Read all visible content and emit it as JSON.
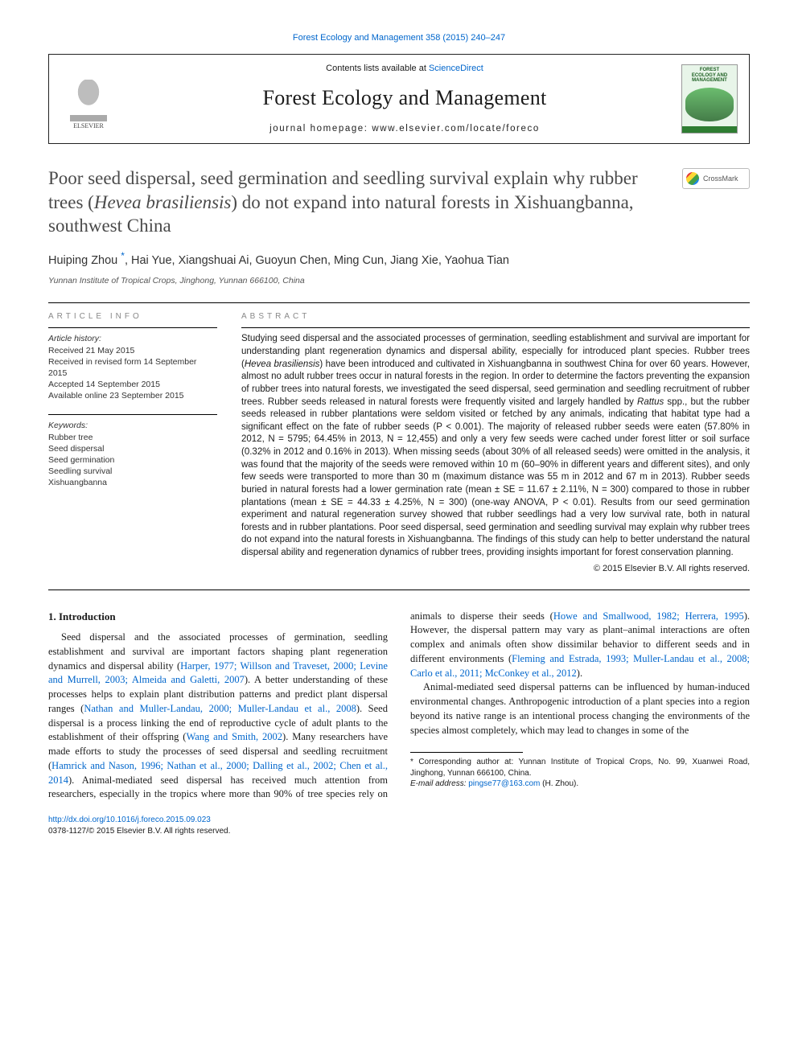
{
  "top_link": {
    "text": "Forest Ecology and Management 358 (2015) 240–247",
    "href": "#"
  },
  "header": {
    "contents_prefix": "Contents lists available at ",
    "contents_link": "ScienceDirect",
    "journal_name": "Forest Ecology and Management",
    "homepage_prefix": "journal homepage: ",
    "homepage_url": "www.elsevier.com/locate/foreco",
    "publisher_logo_text": "ELSEVIER",
    "cover_line1": "FOREST",
    "cover_line2": "ECOLOGY AND",
    "cover_line3": "MANAGEMENT"
  },
  "crossmark_label": "CrossMark",
  "title": {
    "pre": "Poor seed dispersal, seed germination and seedling survival explain why rubber trees (",
    "latin": "Hevea brasiliensis",
    "post": ") do not expand into natural forests in Xishuangbanna, southwest China"
  },
  "authors_prefix": "Huiping Zhou",
  "authors_rest": ", Hai Yue, Xiangshuai Ai, Guoyun Chen, Ming Cun, Jiang Xie, Yaohua Tian",
  "corr_symbol": "*",
  "affiliation": "Yunnan Institute of Tropical Crops, Jinghong, Yunnan 666100, China",
  "article_info": {
    "heading": "article info",
    "history_label": "Article history:",
    "received": "Received 21 May 2015",
    "revised": "Received in revised form 14 September 2015",
    "accepted": "Accepted 14 September 2015",
    "online": "Available online 23 September 2015",
    "keywords_label": "Keywords:",
    "keywords": [
      "Rubber tree",
      "Seed dispersal",
      "Seed germination",
      "Seedling survival",
      "Xishuangbanna"
    ]
  },
  "abstract": {
    "heading": "abstract",
    "body_1": "Studying seed dispersal and the associated processes of germination, seedling establishment and survival are important for understanding plant regeneration dynamics and dispersal ability, especially for introduced plant species. Rubber trees (",
    "latin_1": "Hevea brasiliensis",
    "body_2": ") have been introduced and cultivated in Xishuangbanna in southwest China for over 60 years. However, almost no adult rubber trees occur in natural forests in the region. In order to determine the factors preventing the expansion of rubber trees into natural forests, we investigated the seed dispersal, seed germination and seedling recruitment of rubber trees. Rubber seeds released in natural forests were frequently visited and largely handled by ",
    "latin_2": "Rattus",
    "body_3": " spp., but the rubber seeds released in rubber plantations were seldom visited or fetched by any animals, indicating that habitat type had a significant effect on the fate of rubber seeds (P < 0.001). The majority of released rubber seeds were eaten (57.80% in 2012, N = 5795; 64.45% in 2013, N = 12,455) and only a very few seeds were cached under forest litter or soil surface (0.32% in 2012 and 0.16% in 2013). When missing seeds (about 30% of all released seeds) were omitted in the analysis, it was found that the majority of the seeds were removed within 10 m (60–90% in different years and different sites), and only few seeds were transported to more than 30 m (maximum distance was 55 m in 2012 and 67 m in 2013). Rubber seeds buried in natural forests had a lower germination rate (mean ± SE = 11.67 ± 2.11%, N = 300) compared to those in rubber plantations (mean ± SE = 44.33 ± 4.25%, N = 300) (one-way ANOVA, P < 0.01). Results from our seed germination experiment and natural regeneration survey showed that rubber seedlings had a very low survival rate, both in natural forests and in rubber plantations. Poor seed dispersal, seed germination and seedling survival may explain why rubber trees do not expand into the natural forests in Xishuangbanna. The findings of this study can help to better understand the natural dispersal ability and regeneration dynamics of rubber trees, providing insights important for forest conservation planning.",
    "copyright": "© 2015 Elsevier B.V. All rights reserved."
  },
  "intro": {
    "heading": "1. Introduction",
    "p1_a": "Seed dispersal and the associated processes of germination, seedling establishment and survival are important factors shaping plant regeneration dynamics and dispersal ability (",
    "p1_link1": "Harper, 1977; Willson and Traveset, 2000; Levine and Murrell, 2003; Almeida and Galetti, 2007",
    "p1_b": "). A better understanding of these processes helps to explain plant distribution patterns and predict plant dispersal ranges (",
    "p1_link2": "Nathan and Muller-Landau, 2000; Muller-Landau et al., 2008",
    "p1_c": "). Seed dispersal is a process linking the end of reproductive cycle of adult plants to the establishment of their offspring (",
    "p1_link3": "Wang and Smith, 2002",
    "p1_d": "). Many researchers have made efforts to study the processes of seed dispersal and seedling recruitment (",
    "p1_link4": "Hamrick and Nason, 1996; Nathan et al., 2000; Dalling et al., 2002; Chen et al., 2014",
    "p1_e": "). Animal-mediated seed dispersal has received much attention from researchers, especially in the tropics where more than 90% of tree species rely on animals to disperse their seeds (",
    "p1_link5": "Howe and Smallwood, 1982; Herrera, 1995",
    "p1_f": "). However, the dispersal pattern may vary as plant–animal interactions are often complex and animals often show dissimilar behavior to different seeds and in different environments (",
    "p1_link6": "Fleming and Estrada, 1993; Muller-Landau et al., 2008; Carlo et al., 2011; McConkey et al., 2012",
    "p1_g": ").",
    "p2": "Animal-mediated seed dispersal patterns can be influenced by human-induced environmental changes. Anthropogenic introduction of a plant species into a region beyond its native range is an intentional process changing the environments of the species almost completely, which may lead to changes in some of the"
  },
  "footnote": {
    "corr_text": "Corresponding author at: Yunnan Institute of Tropical Crops, No. 99, Xuanwei Road, Jinghong, Yunnan 666100, China.",
    "email_label": "E-mail address:",
    "email": "pingse77@163.com",
    "email_who": "(H. Zhou)."
  },
  "doi": {
    "url": "http://dx.doi.org/10.1016/j.foreco.2015.09.023",
    "issn_line": "0378-1127/© 2015 Elsevier B.V. All rights reserved."
  }
}
